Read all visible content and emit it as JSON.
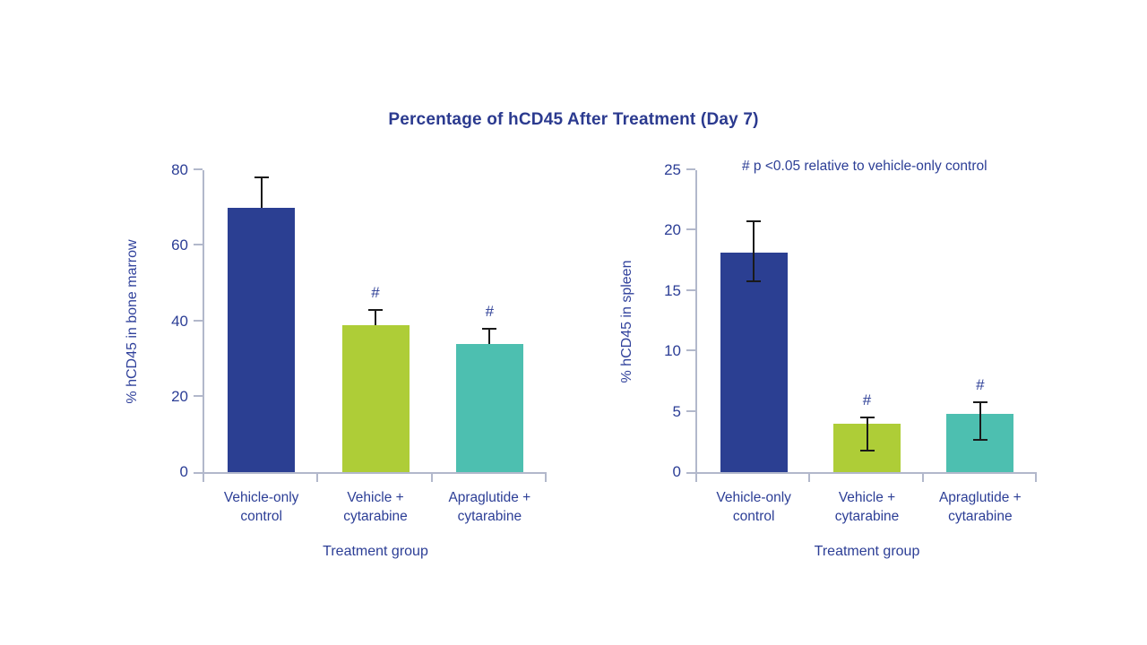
{
  "page": {
    "title": "Percentage of hCD45 After Treatment (Day 7)",
    "annotation": "# p <0.05 relative to vehicle-only  control",
    "background": "#ffffff"
  },
  "colors": {
    "title_text": "#2b3a8f",
    "axis_text": "#2c3e96",
    "axis_line": "#b2b8cb",
    "error_bar": "#1a1a1a"
  },
  "chart_data": [
    {
      "type": "bar",
      "title": "Percentage of hCD45 After Treatment (Day 7)",
      "xlabel": "Treatment group",
      "ylabel": "% hCD45 in bone marrow",
      "categories": [
        [
          "Vehicle-only",
          "control"
        ],
        [
          "Vehicle +",
          "cytarabine"
        ],
        [
          "Apraglutide +",
          "cytarabine"
        ]
      ],
      "values": [
        70,
        39,
        34
      ],
      "error_high": [
        78,
        43,
        38
      ],
      "error_low": [
        null,
        null,
        null
      ],
      "significance": [
        false,
        true,
        true
      ],
      "sig_symbol": "#",
      "bar_colors": [
        "#2b3f92",
        "#aecd37",
        "#4dbfb0"
      ],
      "ylim": [
        0,
        80
      ],
      "yticks": [
        0,
        20,
        40,
        60,
        80
      ],
      "grid": false,
      "legend": "none"
    },
    {
      "type": "bar",
      "title": "Percentage of hCD45 After Treatment (Day 7)",
      "xlabel": "Treatment group",
      "ylabel": "% hCD45 in spleen",
      "categories": [
        [
          "Vehicle-only",
          "control"
        ],
        [
          "Vehicle +",
          "cytarabine"
        ],
        [
          "Apraglutide +",
          "cytarabine"
        ]
      ],
      "values": [
        18.2,
        4.0,
        4.8
      ],
      "error_high": [
        20.8,
        4.5,
        5.8
      ],
      "error_low": [
        15.8,
        1.8,
        2.7
      ],
      "significance": [
        false,
        true,
        true
      ],
      "sig_symbol": "#",
      "bar_colors": [
        "#2b3f92",
        "#aecd37",
        "#4dbfb0"
      ],
      "ylim": [
        0,
        25
      ],
      "yticks": [
        0,
        5,
        10,
        15,
        20,
        25
      ],
      "grid": false,
      "legend": "none",
      "annotation": "# p <0.05 relative to vehicle-only  control"
    }
  ]
}
